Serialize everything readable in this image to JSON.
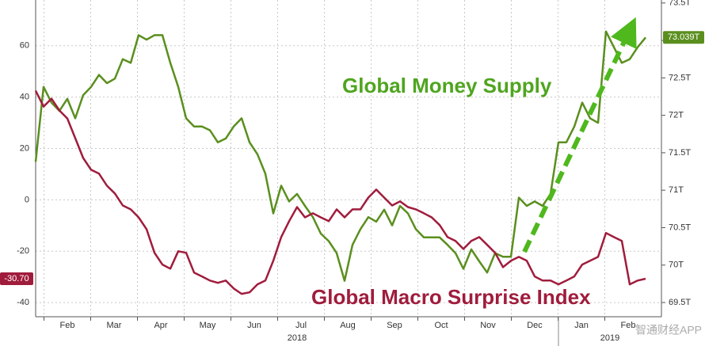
{
  "chart_data": {
    "type": "line",
    "x_labels": [
      "Feb",
      "Mar",
      "Apr",
      "May",
      "Jun",
      "Jul",
      "Aug",
      "Sep",
      "Oct",
      "Nov",
      "Dec",
      "Jan",
      "Feb"
    ],
    "years": [
      "2018",
      "2019"
    ],
    "ylim": [
      -45.5,
      77.8
    ],
    "yticks": [
      60,
      40,
      20,
      0,
      -20,
      -40
    ],
    "y2lim": [
      69.31,
      73.54
    ],
    "y2ticks": [
      {
        "value": 73.5,
        "label": "73.5T"
      },
      {
        "value": 73,
        "label": "73T"
      },
      {
        "value": 72.5,
        "label": "72.5T"
      },
      {
        "value": 72,
        "label": "72T"
      },
      {
        "value": 71.5,
        "label": "71.5T"
      },
      {
        "value": 71,
        "label": "71T"
      },
      {
        "value": 70.5,
        "label": "70.5T"
      },
      {
        "value": 70,
        "label": "70T"
      },
      {
        "value": 69.5,
        "label": "69.5T"
      }
    ],
    "grid": true,
    "series": [
      {
        "name": "Global Money Supply",
        "color": "#5a8f1e",
        "axis": "y2",
        "last_label": "73.039T",
        "values": [
          71.38,
          72.38,
          72.17,
          72.06,
          72.22,
          71.96,
          72.27,
          72.38,
          72.54,
          72.43,
          72.49,
          72.75,
          72.7,
          73.07,
          73.01,
          73.07,
          73.07,
          72.7,
          72.38,
          71.96,
          71.85,
          71.85,
          71.8,
          71.64,
          71.69,
          71.85,
          71.96,
          71.64,
          71.48,
          71.22,
          70.69,
          71.06,
          70.85,
          70.95,
          70.79,
          70.64,
          70.42,
          70.32,
          70.16,
          69.79,
          70.27,
          70.48,
          70.64,
          70.58,
          70.74,
          70.53,
          70.79,
          70.69,
          70.48,
          70.37,
          70.37,
          70.37,
          70.27,
          70.16,
          69.95,
          70.21,
          70.05,
          69.9,
          70.16,
          70.11,
          70.11,
          70.9,
          70.79,
          70.85,
          70.79,
          70.95,
          71.64,
          71.64,
          71.85,
          72.17,
          71.96,
          71.9,
          73.12,
          72.91,
          72.7,
          72.75,
          72.91,
          73.04
        ]
      },
      {
        "name": "Global Macro Surprise Index",
        "color": "#a01c3c",
        "axis": "y",
        "last_label": "-30.70",
        "values": [
          42.5,
          36.3,
          39.4,
          34.8,
          31.7,
          24,
          16.3,
          11.7,
          10.2,
          5.5,
          2.5,
          -2.2,
          -3.7,
          -6.8,
          -11.4,
          -20.6,
          -25.2,
          -26.8,
          -20,
          -20.6,
          -28.3,
          -29.8,
          -31.4,
          -32.3,
          -31.4,
          -34.5,
          -36.6,
          -36,
          -32.9,
          -31.4,
          -23.7,
          -14.5,
          -8.3,
          -2.8,
          -6.8,
          -5.2,
          -6.8,
          -8.3,
          -3.7,
          -6.8,
          -3.7,
          -3.7,
          0.9,
          4,
          0.9,
          -2.2,
          -0.6,
          -2.8,
          -3.7,
          -5.2,
          -6.8,
          -9.8,
          -14.5,
          -16,
          -19.1,
          -16,
          -14.5,
          -17.5,
          -20.6,
          -26.2,
          -23.7,
          -22.2,
          -23.7,
          -29.8,
          -31.4,
          -31.4,
          -32.9,
          -31.4,
          -29.8,
          -25.2,
          -23.7,
          -22.2,
          -12.9,
          -14.5,
          -16,
          -32.9,
          -31.4,
          -30.7
        ]
      }
    ],
    "watermark": "智通财经APP"
  }
}
